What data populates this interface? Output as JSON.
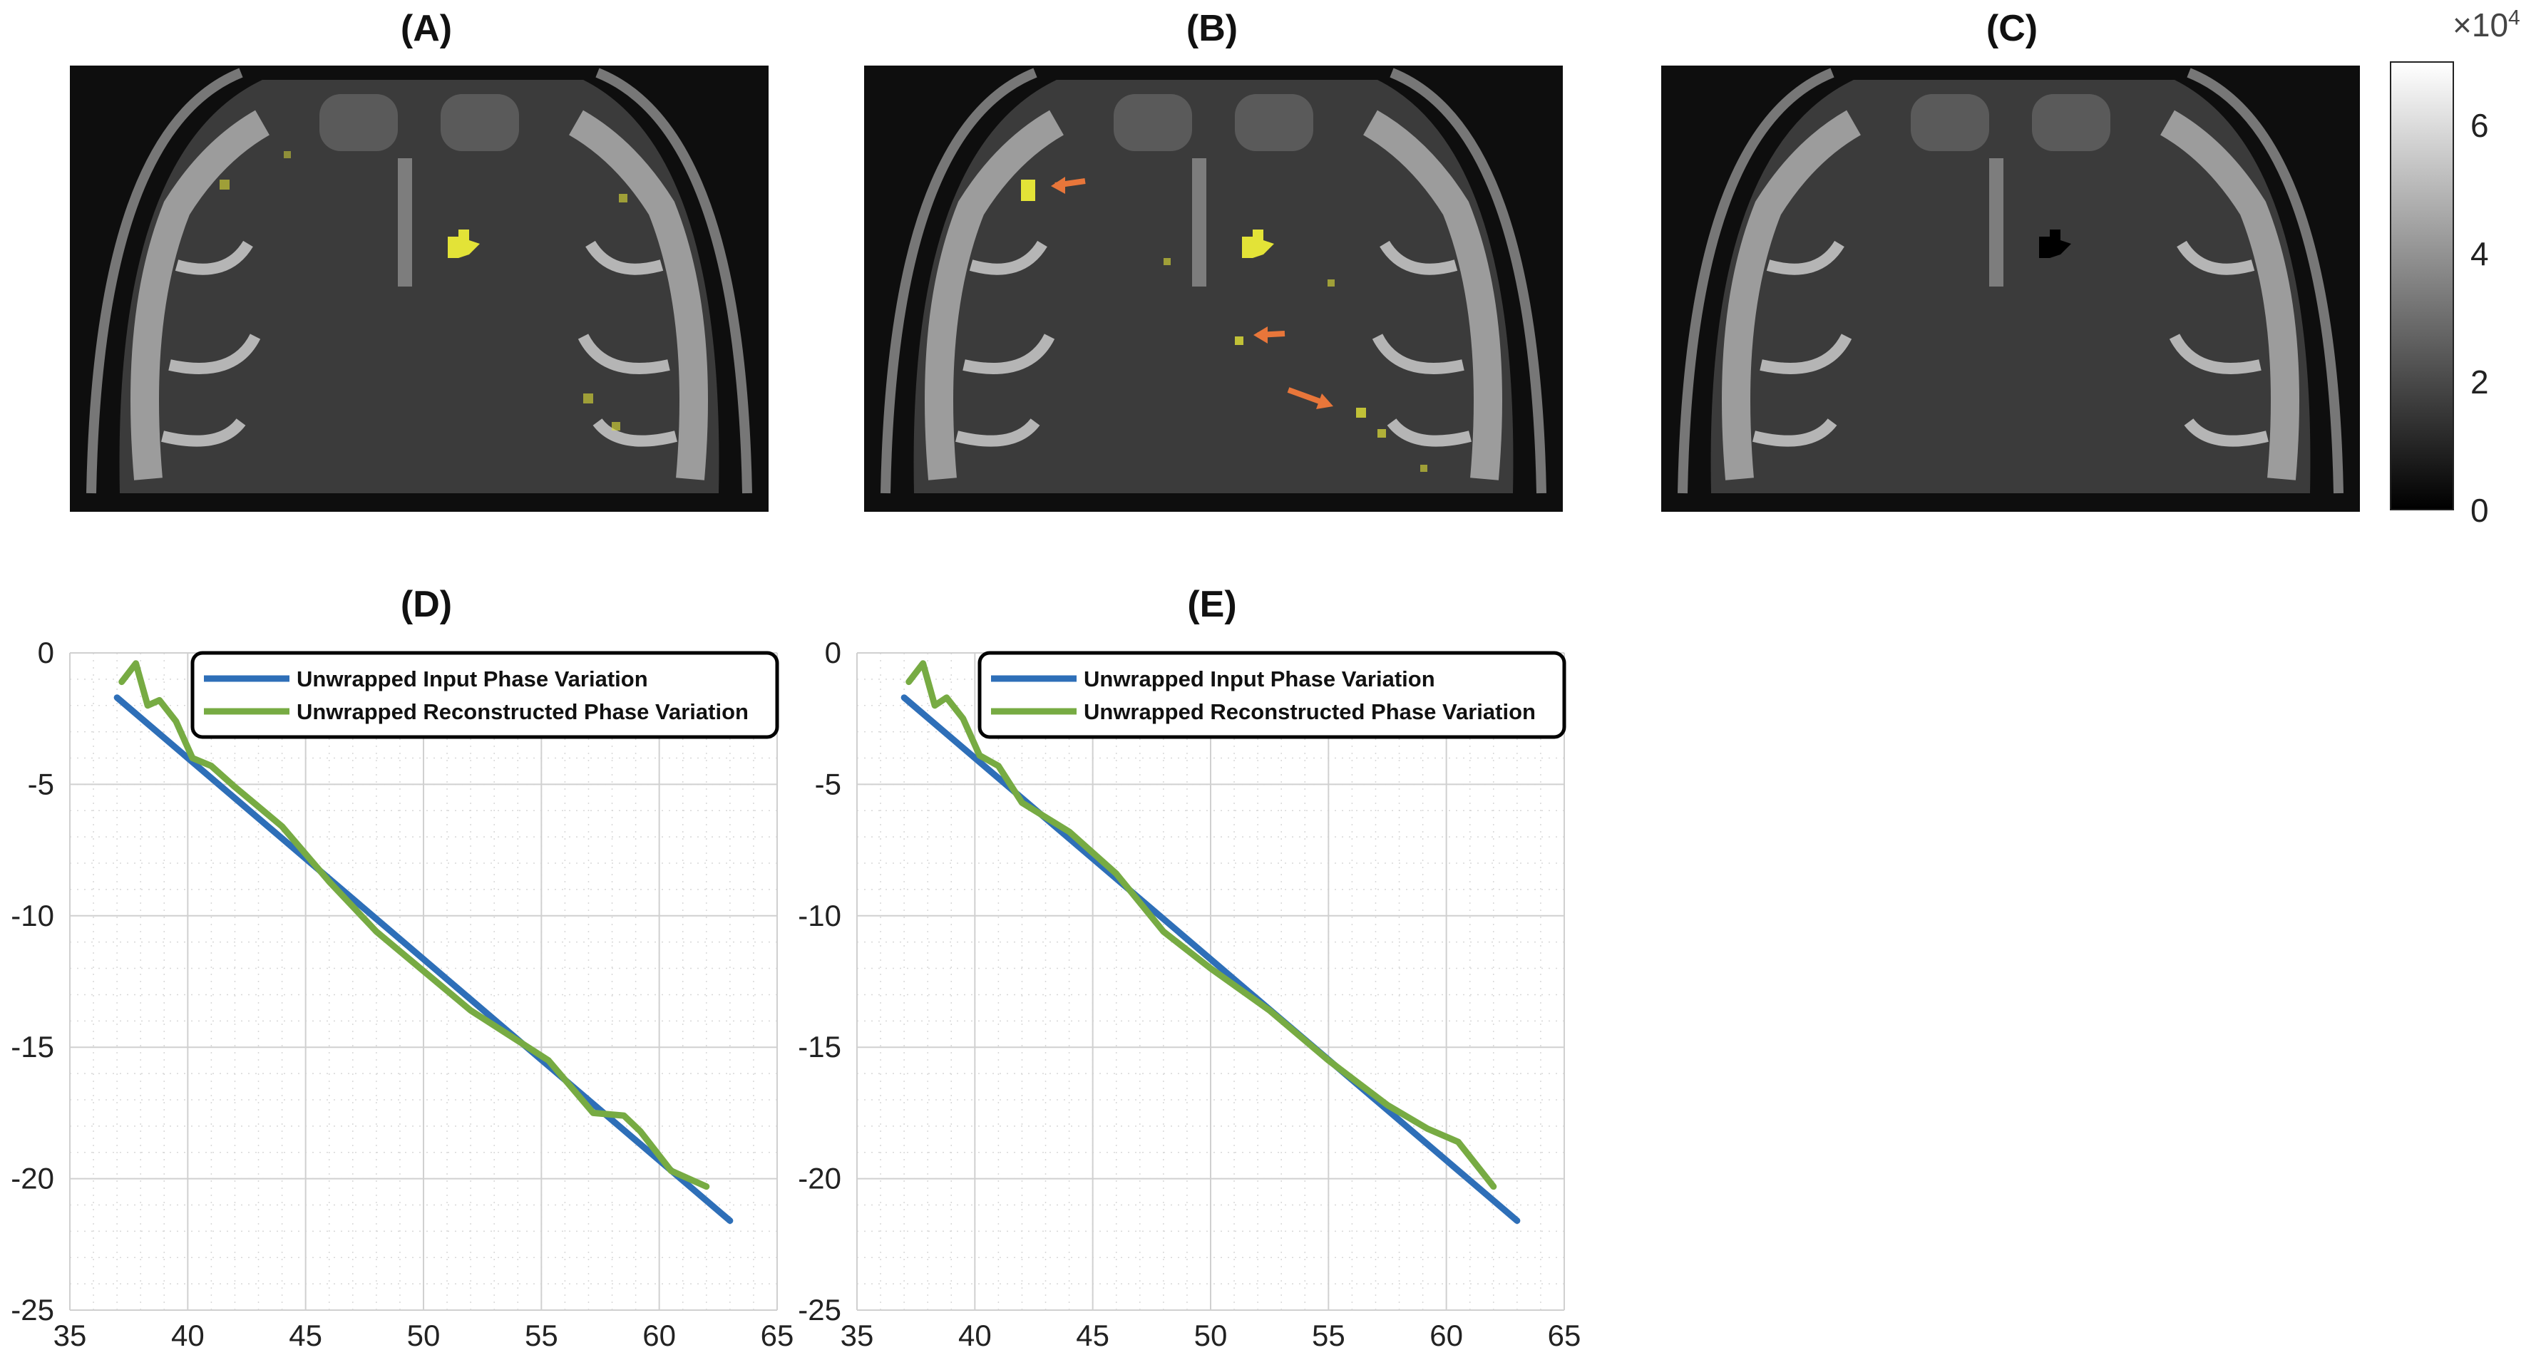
{
  "panels": {
    "a": {
      "label": "(A)"
    },
    "b": {
      "label": "(B)"
    },
    "c": {
      "label": "(C)"
    },
    "d": {
      "label": "(D)"
    },
    "e": {
      "label": "(E)"
    }
  },
  "colorbar": {
    "multiplier_base": "×10",
    "multiplier_exp": "4",
    "ticks": [
      "6",
      "4",
      "2",
      "0"
    ],
    "tick_values": [
      6,
      4,
      2,
      0
    ],
    "range": [
      0,
      7
    ],
    "colors": {
      "top": "#ffffff",
      "bottom": "#000000"
    }
  },
  "colors": {
    "input_series": "#2e6fb8",
    "reconstructed_series": "#77ab43",
    "highlight": "#e3e337",
    "arrow": "#e8763a",
    "grid": "#d0d0d0"
  },
  "chart_data": [
    {
      "type": "line",
      "title": "(D)",
      "xlim": [
        35,
        65
      ],
      "ylim": [
        -25,
        0
      ],
      "xticks": [
        35,
        40,
        45,
        50,
        55,
        60,
        65
      ],
      "yticks": [
        0,
        -5,
        -10,
        -15,
        -20,
        -25
      ],
      "grid": true,
      "legend_position": "top-right",
      "series": [
        {
          "name": "Unwrapped Input Phase Variation",
          "color": "#2e6fb8",
          "x": [
            37,
            63
          ],
          "y": [
            -1.7,
            -21.6
          ]
        },
        {
          "name": "Unwrapped Reconstructed Phase Variation",
          "color": "#77ab43",
          "x": [
            37.2,
            37.8,
            38.3,
            38.8,
            39.5,
            40.2,
            41,
            42,
            44,
            46,
            48,
            50,
            52,
            55.3,
            57.2,
            58.5,
            59.2,
            60.5,
            62
          ],
          "y": [
            -1.1,
            -0.4,
            -2.0,
            -1.8,
            -2.6,
            -4.0,
            -4.3,
            -5.1,
            -6.6,
            -8.7,
            -10.6,
            -12.1,
            -13.6,
            -15.5,
            -17.5,
            -17.6,
            -18.2,
            -19.7,
            -20.3
          ]
        }
      ]
    },
    {
      "type": "line",
      "title": "(E)",
      "xlim": [
        35,
        65
      ],
      "ylim": [
        -25,
        0
      ],
      "xticks": [
        35,
        40,
        45,
        50,
        55,
        60,
        65
      ],
      "yticks": [
        0,
        -5,
        -10,
        -15,
        -20,
        -25
      ],
      "grid": true,
      "legend_position": "top-right",
      "series": [
        {
          "name": "Unwrapped Input Phase Variation",
          "color": "#2e6fb8",
          "x": [
            37,
            63
          ],
          "y": [
            -1.7,
            -21.6
          ]
        },
        {
          "name": "Unwrapped Reconstructed Phase Variation",
          "color": "#77ab43",
          "x": [
            37.2,
            37.8,
            38.3,
            38.8,
            39.5,
            40.2,
            41,
            42,
            44,
            46,
            48,
            50,
            52.5,
            55,
            57.5,
            59.2,
            60.5,
            62
          ],
          "y": [
            -1.1,
            -0.4,
            -2.0,
            -1.7,
            -2.5,
            -3.9,
            -4.3,
            -5.7,
            -6.8,
            -8.4,
            -10.6,
            -12.0,
            -13.6,
            -15.5,
            -17.2,
            -18.1,
            -18.6,
            -20.3
          ]
        }
      ]
    }
  ]
}
